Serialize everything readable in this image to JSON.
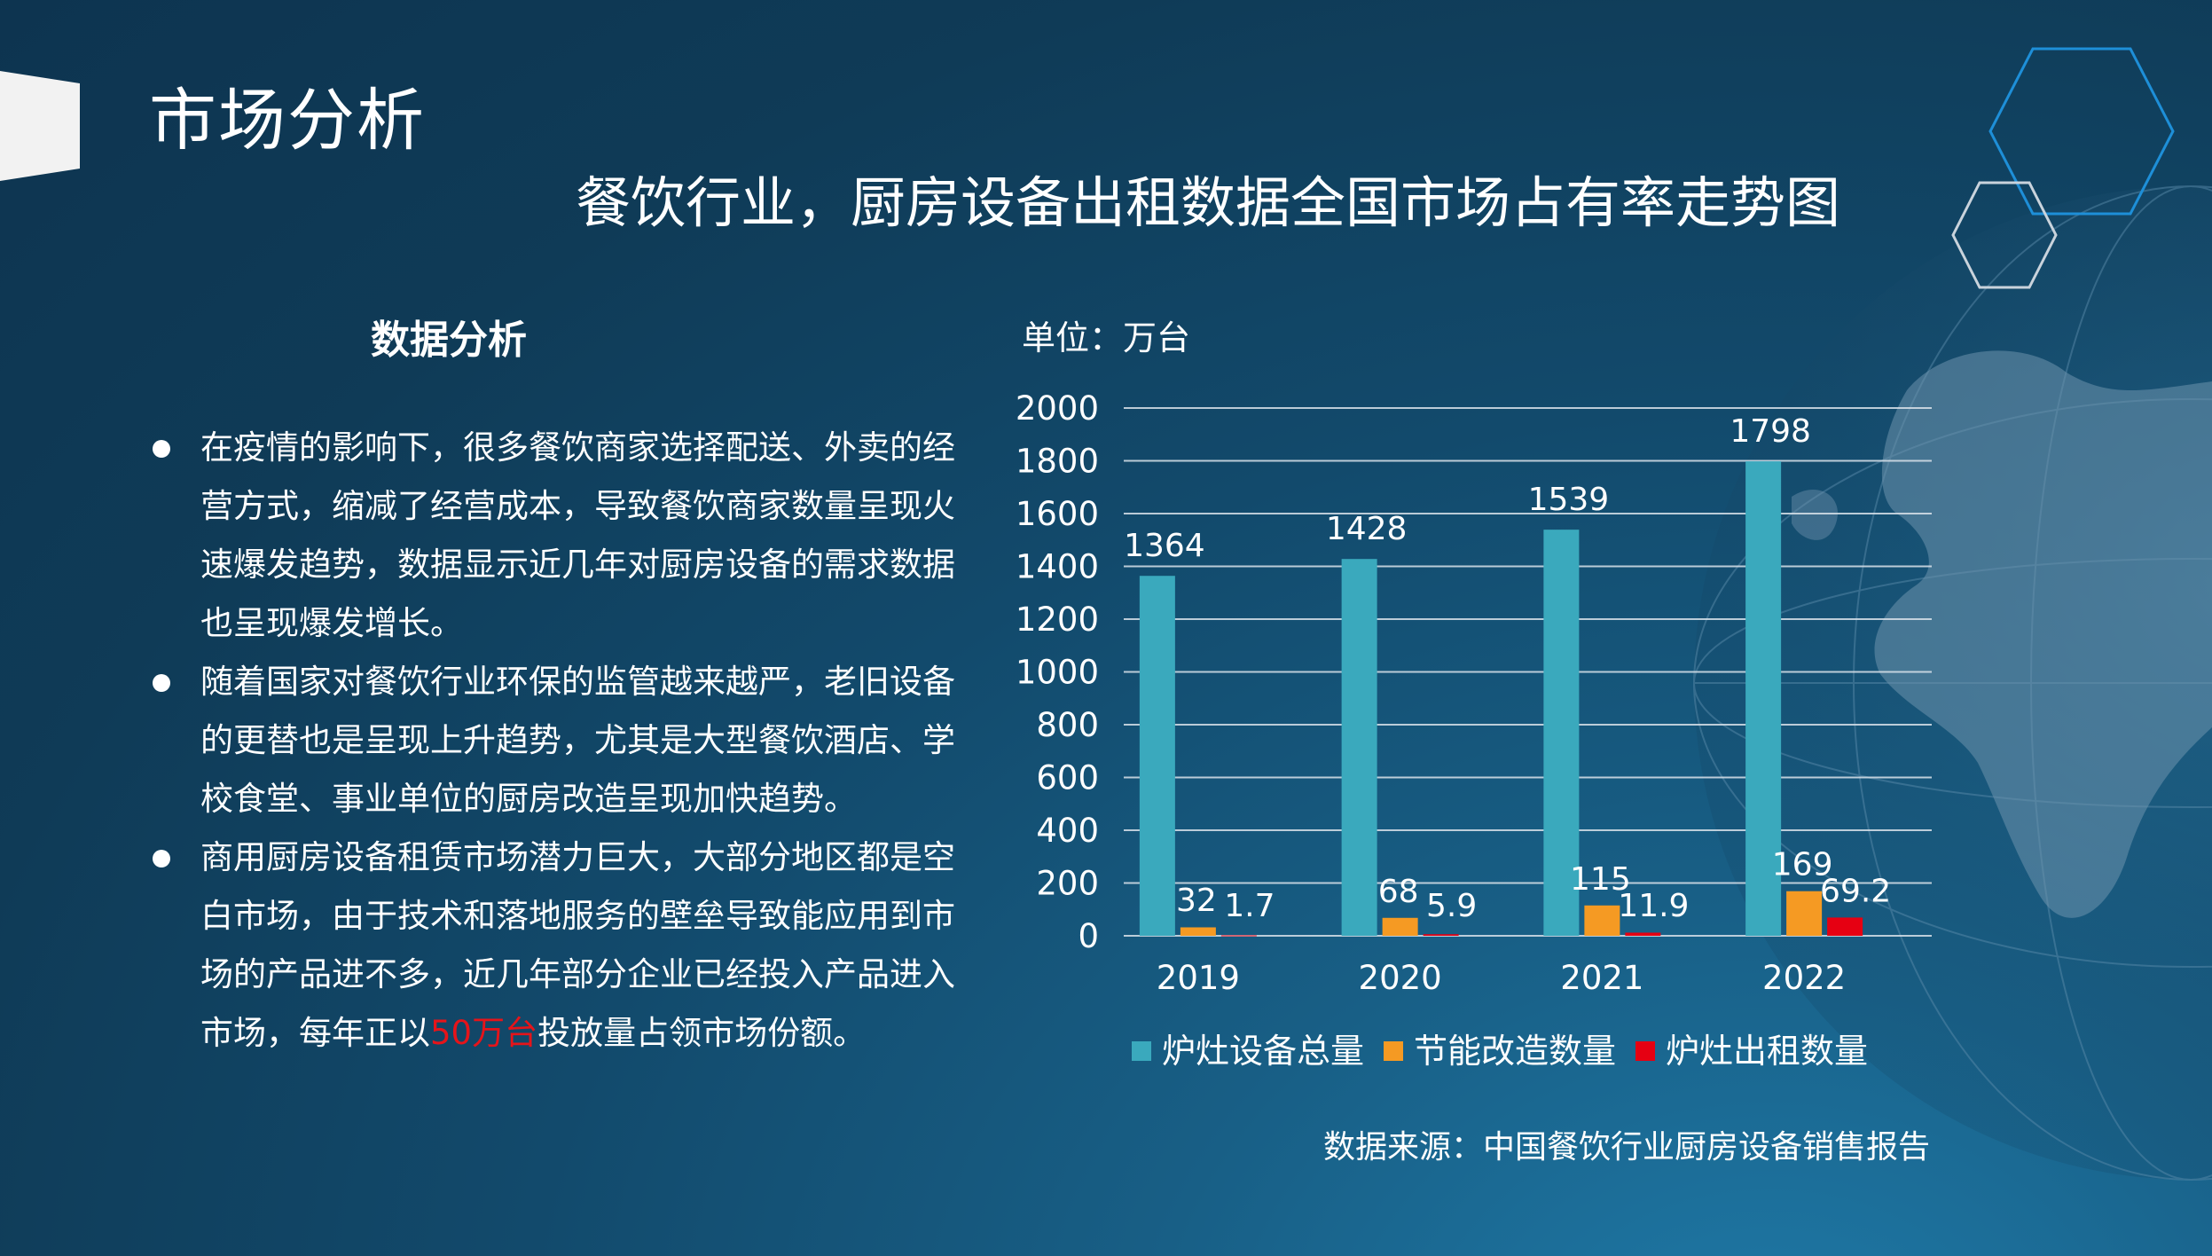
{
  "slide": {
    "title": "市场分析",
    "subtitle": "餐饮行业，厨房设备出租数据全国市场占有率走势图"
  },
  "analysis": {
    "heading": "数据分析",
    "bullets": [
      {
        "text": "在疫情的影响下，很多餐饮商家选择配送、外卖的经营方式，缩减了经营成本，导致餐饮商家数量呈现火速爆发趋势，数据显示近几年对厨房设备的需求数据也呈现爆发增长。"
      },
      {
        "text": "随着国家对餐饮行业环保的监管越来越严，老旧设备的更替也是呈现上升趋势，尤其是大型餐饮酒店、学校食堂、事业单位的厨房改造呈现加快趋势。"
      },
      {
        "text_before": "商用厨房设备租赁市场潜力巨大，大部分地区都是空白市场，由于技术和落地服务的壁垒导致能应用到市场的产品进不多，近几年部分企业已经投入产品进入市场，每年正以",
        "highlight": "50万台",
        "text_after": "投放量占领市场份额。"
      }
    ],
    "highlight_color": "#e6141a"
  },
  "source": "数据来源：中国餐饮行业厨房设备销售报告",
  "chart_data": {
    "type": "bar",
    "unit_label": "单位：万台",
    "categories": [
      "2019",
      "2020",
      "2021",
      "2022"
    ],
    "series": [
      {
        "name": "炉灶设备总量",
        "values": [
          1364,
          1428,
          1539,
          1798
        ],
        "labels": [
          "1364",
          "1428",
          "1539",
          "1798"
        ],
        "color": "#3aa9bd"
      },
      {
        "name": "节能改造数量",
        "values": [
          32,
          68,
          115,
          169
        ],
        "labels": [
          "32",
          "68",
          "115",
          "169"
        ],
        "color": "#f59a23"
      },
      {
        "name": "炉灶出租数量",
        "values": [
          1.7,
          5.9,
          11.9,
          69.2
        ],
        "labels": [
          "1.7",
          "5.9",
          "11.9",
          "69.2"
        ],
        "color": "#e60012"
      }
    ],
    "ylim": [
      0,
      2000
    ],
    "yticks": [
      "0",
      "200",
      "400",
      "600",
      "800",
      "1000",
      "1200",
      "1400",
      "1600",
      "1800",
      "2000"
    ],
    "grid": true,
    "legend": "bottom"
  }
}
